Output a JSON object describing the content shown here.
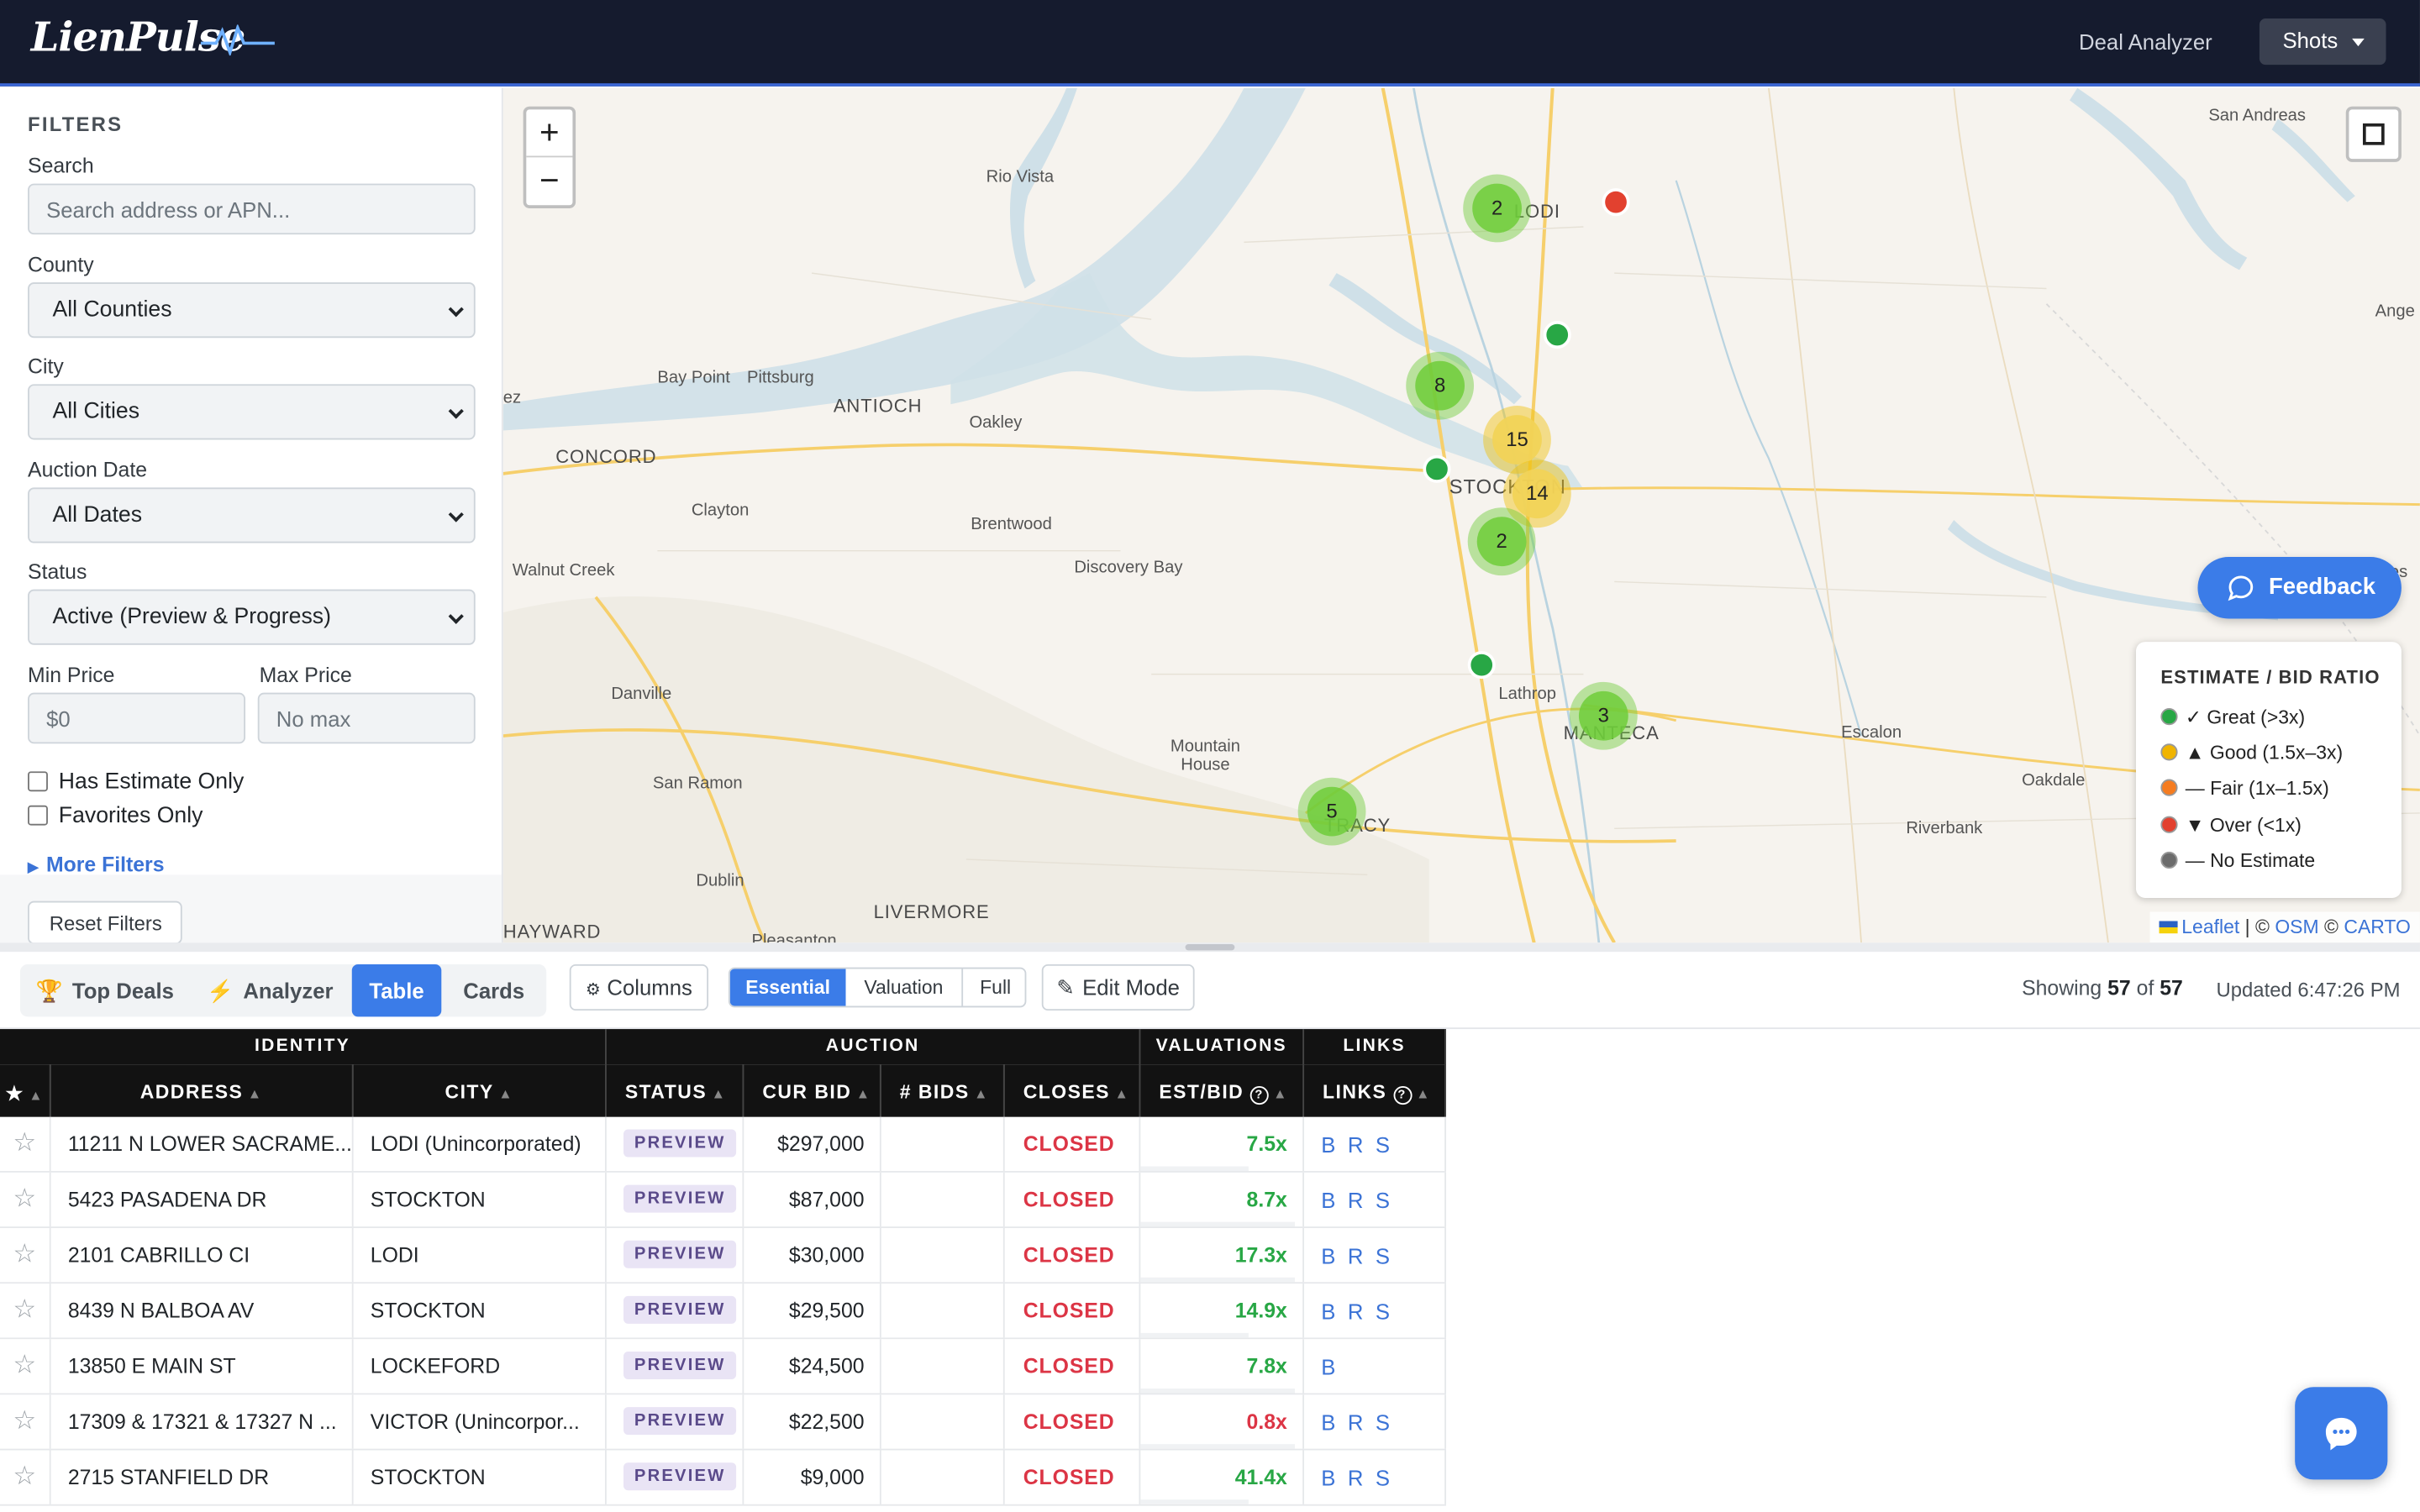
{
  "header": {
    "logo_text": "LienPulse",
    "nav_link": "Deal Analyzer",
    "shots_label": "Shots"
  },
  "filters": {
    "title": "FILTERS",
    "search_label": "Search",
    "search_placeholder": "Search address or APN...",
    "county_label": "County",
    "county_value": "All Counties",
    "city_label": "City",
    "city_value": "All Cities",
    "auction_label": "Auction Date",
    "auction_value": "All Dates",
    "status_label": "Status",
    "status_value": "Active (Preview & Progress)",
    "min_price_label": "Min Price",
    "min_price_placeholder": "$0",
    "max_price_label": "Max Price",
    "max_price_placeholder": "No max",
    "has_estimate_label": "Has Estimate Only",
    "favorites_label": "Favorites Only",
    "more_filters": "More Filters",
    "reset_label": "Reset Filters"
  },
  "map": {
    "zoom_in": "+",
    "zoom_out": "−",
    "places": {
      "san_andreas": "San Andreas",
      "rio_vista": "Rio Vista",
      "lodi": "LODI",
      "ange": "Ange",
      "bay_point": "Bay Point",
      "pittsburg": "Pittsburg",
      "antioch": "ANTIOCH",
      "oakley": "Oakley",
      "concord": "CONCORD",
      "ez": "ez",
      "clayton": "Clayton",
      "stockton": "STOCKTON",
      "brentwood": "Brentwood",
      "walnut_creek": "Walnut Creek",
      "discovery_bay": "Discovery Bay",
      "danville": "Danville",
      "lathrop": "Lathrop",
      "manteca": "MANTECA",
      "escalon": "Escalon",
      "mountain_house": "Mountain House",
      "san_ramon": "San Ramon",
      "tracy": "TRACY",
      "oakdale": "Oakdale",
      "riverbank": "Riverbank",
      "dublin": "Dublin",
      "livermore": "LIVERMORE",
      "hayward": "HAYWARD",
      "pleasanton": "Pleasanton",
      "pes": "Pes"
    },
    "clusters": [
      {
        "count": "2",
        "color": "green"
      },
      {
        "count": "8",
        "color": "green"
      },
      {
        "count": "15",
        "color": "yellow"
      },
      {
        "count": "14",
        "color": "yellow"
      },
      {
        "count": "2",
        "color": "green"
      },
      {
        "count": "3",
        "color": "green"
      },
      {
        "count": "5",
        "color": "green"
      }
    ],
    "feedback_label": "Feedback",
    "attribution": {
      "leaflet": "Leaflet",
      "osm": "OSM",
      "carto": "CARTO",
      "sep": "|",
      "copy": "©"
    }
  },
  "legend": {
    "title": "ESTIMATE / BID RATIO",
    "items": [
      {
        "label": "✓ Great (>3x)",
        "color": "#28a745"
      },
      {
        "label": "▲ Good (1.5x–3x)",
        "color": "#f0b400"
      },
      {
        "label": "— Fair (1x–1.5x)",
        "color": "#f57c20"
      },
      {
        "label": "▼ Over (<1x)",
        "color": "#e2412f"
      },
      {
        "label": "— No Estimate",
        "color": "#6c6c6c"
      }
    ]
  },
  "toolbar": {
    "top_deals": "Top Deals",
    "analyzer": "Analyzer",
    "table": "Table",
    "cards": "Cards",
    "columns": "Columns",
    "essential": "Essential",
    "valuation": "Valuation",
    "full": "Full",
    "edit_mode": "Edit Mode",
    "showing_prefix": "Showing",
    "showing_count": "57",
    "showing_of": "of",
    "showing_total": "57",
    "updated": "Updated 6:47:26 PM"
  },
  "table": {
    "groups": {
      "identity": "IDENTITY",
      "auction": "AUCTION",
      "valuations": "VALUATIONS",
      "links": "LINKS"
    },
    "headers": {
      "star": "★",
      "address": "ADDRESS",
      "city": "CITY",
      "status": "STATUS",
      "cur_bid": "CUR BID",
      "bids": "# BIDS",
      "closes": "CLOSES",
      "est_bid": "EST/BID",
      "links": "LINKS"
    },
    "rows": [
      {
        "address": "11211 N LOWER SACRAME...",
        "city": "LODI (Unincorporated)",
        "status": "PREVIEW",
        "cur_bid": "$297,000",
        "bids": "",
        "closes": "CLOSED",
        "est_bid": "7.5x",
        "ratio_color": "g",
        "links": "B R S"
      },
      {
        "address": "5423 PASADENA DR",
        "city": "STOCKTON",
        "status": "PREVIEW",
        "cur_bid": "$87,000",
        "bids": "",
        "closes": "CLOSED",
        "est_bid": "8.7x",
        "ratio_color": "g",
        "links": "B R S"
      },
      {
        "address": "2101 CABRILLO CI",
        "city": "LODI",
        "status": "PREVIEW",
        "cur_bid": "$30,000",
        "bids": "",
        "closes": "CLOSED",
        "est_bid": "17.3x",
        "ratio_color": "g",
        "links": "B R S"
      },
      {
        "address": "8439 N BALBOA AV",
        "city": "STOCKTON",
        "status": "PREVIEW",
        "cur_bid": "$29,500",
        "bids": "",
        "closes": "CLOSED",
        "est_bid": "14.9x",
        "ratio_color": "g",
        "links": "B R S"
      },
      {
        "address": "13850 E MAIN ST",
        "city": "LOCKEFORD",
        "status": "PREVIEW",
        "cur_bid": "$24,500",
        "bids": "",
        "closes": "CLOSED",
        "est_bid": "7.8x",
        "ratio_color": "g",
        "links": "B"
      },
      {
        "address": "17309 & 17321 & 17327 N ...",
        "city": "VICTOR (Unincorpor...",
        "status": "PREVIEW",
        "cur_bid": "$22,500",
        "bids": "",
        "closes": "CLOSED",
        "est_bid": "0.8x",
        "ratio_color": "r",
        "links": "B R S"
      },
      {
        "address": "2715 STANFIELD DR",
        "city": "STOCKTON",
        "status": "PREVIEW",
        "cur_bid": "$9,000",
        "bids": "",
        "closes": "CLOSED",
        "est_bid": "41.4x",
        "ratio_color": "g",
        "links": "B R S"
      }
    ]
  },
  "chat_icon": "chat-bubble-icon"
}
